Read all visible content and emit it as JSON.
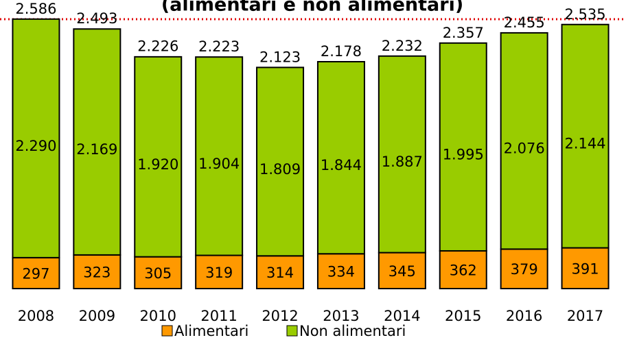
{
  "chart_data": {
    "type": "stacked_bar",
    "title": "(alimentari e non alimentari)",
    "categories": [
      "2008",
      "2009",
      "2010",
      "2011",
      "2012",
      "2013",
      "2014",
      "2015",
      "2016",
      "2017"
    ],
    "series": [
      {
        "name": "Alimentari",
        "color": "#ff9900",
        "values": [
          297,
          323,
          305,
          319,
          314,
          334,
          345,
          362,
          379,
          391
        ]
      },
      {
        "name": "Non alimentari",
        "color": "#99cc00",
        "values": [
          2290,
          2169,
          1920,
          1904,
          1809,
          1844,
          1887,
          1995,
          2076,
          2144
        ],
        "value_labels": [
          "2.290",
          "2.169",
          "1.920",
          "1.904",
          "1.809",
          "1.844",
          "1.887",
          "1.995",
          "2.076",
          "2.144"
        ]
      }
    ],
    "totals": {
      "values": [
        2586,
        2493,
        2226,
        2223,
        2123,
        2178,
        2232,
        2357,
        2455,
        2535
      ],
      "value_labels": [
        "2.586",
        "2.493",
        "2.226",
        "2.223",
        "2.123",
        "2.178",
        "2.232",
        "2.357",
        "2.455",
        "2.535"
      ]
    },
    "reference_line": {
      "value": 2586,
      "color": "#e00000"
    },
    "legend": "bottom"
  }
}
